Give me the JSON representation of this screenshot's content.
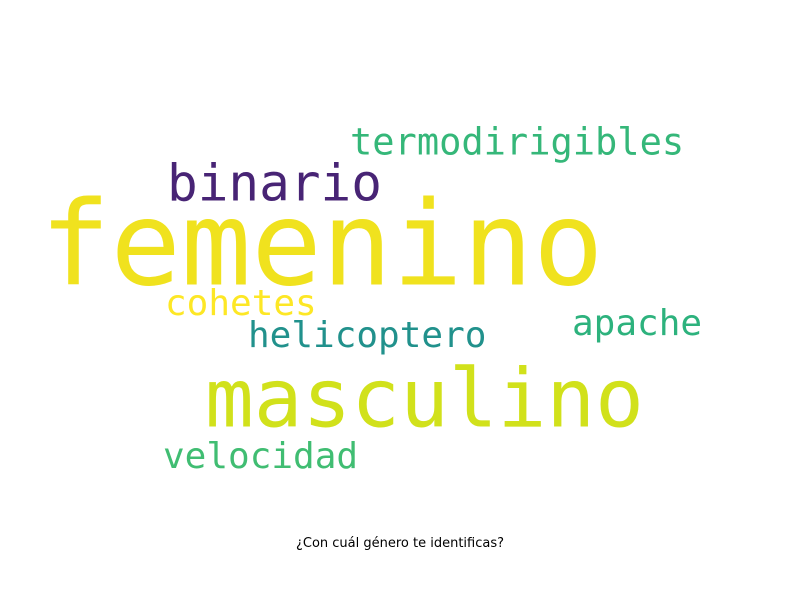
{
  "words": [
    {
      "text": "femenino",
      "color": "#f0e21e"
    },
    {
      "text": "masculino",
      "color": "#d1e11b"
    },
    {
      "text": "binario",
      "color": "#482475"
    },
    {
      "text": "termodirigibles",
      "color": "#35b779"
    },
    {
      "text": "cohetes",
      "color": "#fde725"
    },
    {
      "text": "apache",
      "color": "#2db27d"
    },
    {
      "text": "helicoptero",
      "color": "#21918c"
    },
    {
      "text": "velocidad",
      "color": "#40bd72"
    }
  ],
  "caption": "¿Con cuál género te identificas?"
}
